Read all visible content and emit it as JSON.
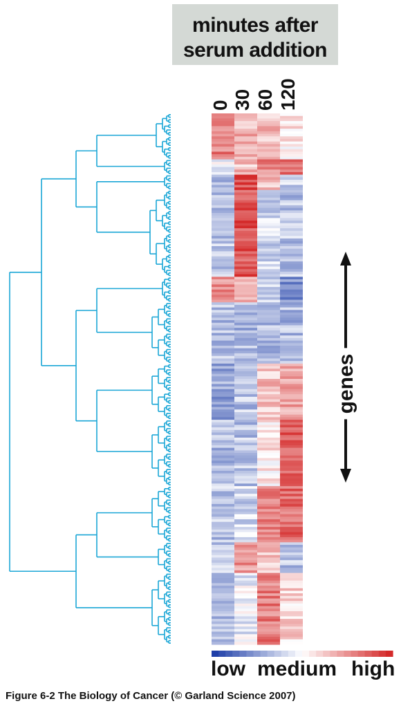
{
  "header": {
    "title_line1": "minutes after",
    "title_line2": "serum addition"
  },
  "axis": {
    "label": "genes"
  },
  "legend": {
    "low": "low",
    "medium": "medium",
    "high": "high",
    "colors": {
      "low": "#1f3fa8",
      "medium": "#ffffff",
      "high": "#d42a2a"
    }
  },
  "caption": "Figure 6-2  The Biology of Cancer (© Garland Science 2007)",
  "colors": {
    "dendrogram": "#1aa6d6",
    "arrow": "#111111"
  },
  "chart_data": {
    "type": "heatmap",
    "columns": [
      "0",
      "30",
      "60",
      "120"
    ],
    "value_scale": "-1 = low, 0 = medium, 1 = high (approximate relative expression)",
    "row_groups": [
      {
        "rows": 18,
        "values": [
          0.6,
          0.35,
          0.3,
          0.1
        ]
      },
      {
        "rows": 6,
        "values": [
          -0.1,
          0.3,
          0.6,
          0.6
        ]
      },
      {
        "rows": 6,
        "values": [
          -0.3,
          0.85,
          0.3,
          -0.2
        ]
      },
      {
        "rows": 34,
        "values": [
          -0.3,
          0.8,
          -0.2,
          -0.3
        ]
      },
      {
        "rows": 10,
        "values": [
          0.5,
          0.3,
          -0.2,
          -0.6
        ]
      },
      {
        "rows": 24,
        "values": [
          -0.3,
          -0.35,
          -0.35,
          -0.35
        ]
      },
      {
        "rows": 22,
        "values": [
          -0.45,
          -0.3,
          0.3,
          0.45
        ]
      },
      {
        "rows": 26,
        "values": [
          -0.35,
          -0.3,
          0.1,
          0.75
        ]
      },
      {
        "rows": 22,
        "values": [
          -0.3,
          -0.2,
          0.6,
          0.7
        ]
      },
      {
        "rows": 12,
        "values": [
          -0.3,
          0.5,
          0.3,
          -0.3
        ]
      },
      {
        "rows": 28,
        "values": [
          -0.35,
          -0.1,
          0.6,
          0.2
        ]
      }
    ]
  }
}
